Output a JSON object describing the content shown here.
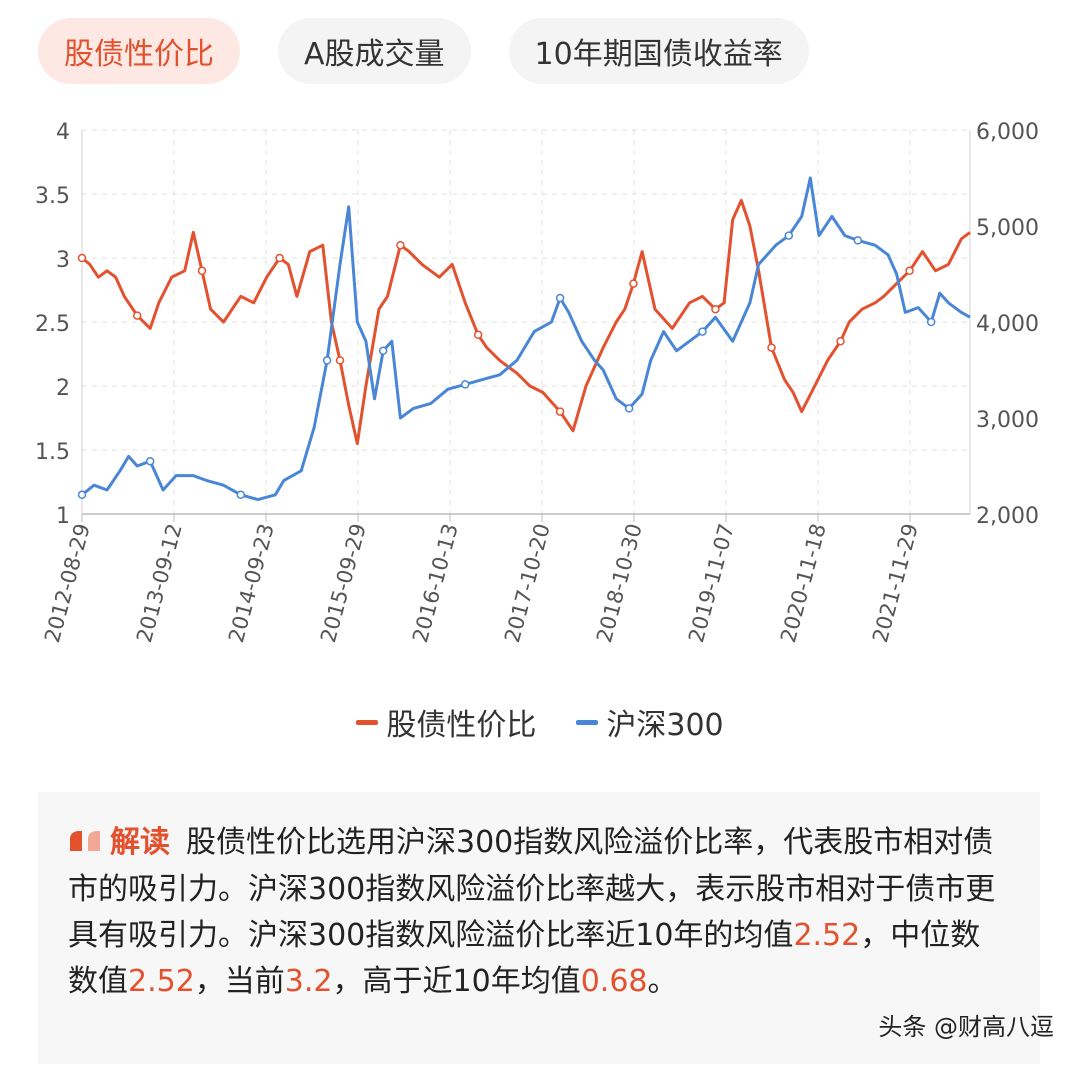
{
  "tabs": [
    {
      "label": "股债性价比",
      "active": true
    },
    {
      "label": "A股成交量",
      "active": false
    },
    {
      "label": "10年期国债收益率",
      "active": false
    }
  ],
  "colors": {
    "series1": "#e3522f",
    "series2": "#4a86d6",
    "grid": "#e0e0e0"
  },
  "chart_data": {
    "type": "line",
    "grid": true,
    "legend_position": "bottom",
    "x_labels": [
      "2012-08-29",
      "2013-09-12",
      "2014-09-23",
      "2015-09-29",
      "2016-10-13",
      "2017-10-20",
      "2018-10-30",
      "2019-11-07",
      "2020-11-18",
      "2021-11-29"
    ],
    "y_left": {
      "ticks": [
        "4",
        "3.5",
        "3",
        "2.5",
        "2",
        "1.5",
        "1"
      ],
      "range": [
        1,
        4
      ]
    },
    "y_right": {
      "ticks": [
        "6,000",
        "5,000",
        "4,000",
        "3,000",
        "2,000"
      ],
      "range": [
        2000,
        6000
      ]
    },
    "x_range": [
      2012.66,
      2022.95
    ],
    "series": [
      {
        "name": "股债性价比",
        "axis": "left",
        "color": "#e3522f",
        "points": [
          [
            2012.66,
            3.0
          ],
          [
            2012.75,
            2.95
          ],
          [
            2012.85,
            2.85
          ],
          [
            2012.95,
            2.9
          ],
          [
            2013.05,
            2.85
          ],
          [
            2013.15,
            2.7
          ],
          [
            2013.3,
            2.55
          ],
          [
            2013.45,
            2.45
          ],
          [
            2013.55,
            2.65
          ],
          [
            2013.7,
            2.85
          ],
          [
            2013.85,
            2.9
          ],
          [
            2013.95,
            3.2
          ],
          [
            2014.05,
            2.9
          ],
          [
            2014.15,
            2.6
          ],
          [
            2014.3,
            2.5
          ],
          [
            2014.5,
            2.7
          ],
          [
            2014.65,
            2.65
          ],
          [
            2014.8,
            2.85
          ],
          [
            2014.95,
            3.0
          ],
          [
            2015.05,
            2.95
          ],
          [
            2015.15,
            2.7
          ],
          [
            2015.3,
            3.05
          ],
          [
            2015.45,
            3.1
          ],
          [
            2015.55,
            2.5
          ],
          [
            2015.65,
            2.2
          ],
          [
            2015.75,
            1.85
          ],
          [
            2015.85,
            1.55
          ],
          [
            2015.95,
            2.0
          ],
          [
            2016.1,
            2.6
          ],
          [
            2016.2,
            2.7
          ],
          [
            2016.35,
            3.1
          ],
          [
            2016.45,
            3.05
          ],
          [
            2016.6,
            2.95
          ],
          [
            2016.8,
            2.85
          ],
          [
            2016.95,
            2.95
          ],
          [
            2017.1,
            2.65
          ],
          [
            2017.25,
            2.4
          ],
          [
            2017.35,
            2.3
          ],
          [
            2017.5,
            2.2
          ],
          [
            2017.7,
            2.1
          ],
          [
            2017.85,
            2.0
          ],
          [
            2018.0,
            1.95
          ],
          [
            2018.2,
            1.8
          ],
          [
            2018.35,
            1.65
          ],
          [
            2018.5,
            2.0
          ],
          [
            2018.7,
            2.3
          ],
          [
            2018.85,
            2.5
          ],
          [
            2018.95,
            2.6
          ],
          [
            2019.05,
            2.8
          ],
          [
            2019.15,
            3.05
          ],
          [
            2019.3,
            2.6
          ],
          [
            2019.5,
            2.45
          ],
          [
            2019.7,
            2.65
          ],
          [
            2019.85,
            2.7
          ],
          [
            2020.0,
            2.6
          ],
          [
            2020.1,
            2.65
          ],
          [
            2020.2,
            3.3
          ],
          [
            2020.3,
            3.45
          ],
          [
            2020.4,
            3.25
          ],
          [
            2020.5,
            2.9
          ],
          [
            2020.65,
            2.3
          ],
          [
            2020.8,
            2.05
          ],
          [
            2020.9,
            1.95
          ],
          [
            2021.0,
            1.8
          ],
          [
            2021.15,
            2.0
          ],
          [
            2021.3,
            2.2
          ],
          [
            2021.45,
            2.35
          ],
          [
            2021.55,
            2.5
          ],
          [
            2021.7,
            2.6
          ],
          [
            2021.85,
            2.65
          ],
          [
            2021.95,
            2.7
          ],
          [
            2022.1,
            2.8
          ],
          [
            2022.25,
            2.9
          ],
          [
            2022.4,
            3.05
          ],
          [
            2022.55,
            2.9
          ],
          [
            2022.7,
            2.95
          ],
          [
            2022.85,
            3.15
          ],
          [
            2022.95,
            3.2
          ]
        ]
      },
      {
        "name": "沪深300",
        "axis": "right",
        "color": "#4a86d6",
        "points": [
          [
            2012.66,
            2200
          ],
          [
            2012.8,
            2300
          ],
          [
            2012.95,
            2250
          ],
          [
            2013.1,
            2450
          ],
          [
            2013.2,
            2600
          ],
          [
            2013.3,
            2500
          ],
          [
            2013.45,
            2550
          ],
          [
            2013.6,
            2250
          ],
          [
            2013.75,
            2400
          ],
          [
            2013.95,
            2400
          ],
          [
            2014.1,
            2350
          ],
          [
            2014.3,
            2300
          ],
          [
            2014.5,
            2200
          ],
          [
            2014.7,
            2150
          ],
          [
            2014.9,
            2200
          ],
          [
            2015.0,
            2350
          ],
          [
            2015.2,
            2450
          ],
          [
            2015.35,
            2900
          ],
          [
            2015.5,
            3600
          ],
          [
            2015.65,
            4600
          ],
          [
            2015.75,
            5200
          ],
          [
            2015.85,
            4000
          ],
          [
            2015.95,
            3800
          ],
          [
            2016.05,
            3200
          ],
          [
            2016.15,
            3700
          ],
          [
            2016.25,
            3800
          ],
          [
            2016.35,
            3000
          ],
          [
            2016.5,
            3100
          ],
          [
            2016.7,
            3150
          ],
          [
            2016.9,
            3300
          ],
          [
            2017.1,
            3350
          ],
          [
            2017.3,
            3400
          ],
          [
            2017.5,
            3450
          ],
          [
            2017.7,
            3600
          ],
          [
            2017.9,
            3900
          ],
          [
            2018.1,
            4000
          ],
          [
            2018.2,
            4250
          ],
          [
            2018.3,
            4100
          ],
          [
            2018.45,
            3800
          ],
          [
            2018.6,
            3600
          ],
          [
            2018.7,
            3500
          ],
          [
            2018.85,
            3200
          ],
          [
            2019.0,
            3100
          ],
          [
            2019.15,
            3250
          ],
          [
            2019.25,
            3600
          ],
          [
            2019.4,
            3900
          ],
          [
            2019.55,
            3700
          ],
          [
            2019.7,
            3800
          ],
          [
            2019.85,
            3900
          ],
          [
            2020.0,
            4050
          ],
          [
            2020.2,
            3800
          ],
          [
            2020.4,
            4200
          ],
          [
            2020.5,
            4600
          ],
          [
            2020.7,
            4800
          ],
          [
            2020.85,
            4900
          ],
          [
            2021.0,
            5100
          ],
          [
            2021.1,
            5500
          ],
          [
            2021.2,
            4900
          ],
          [
            2021.35,
            5100
          ],
          [
            2021.5,
            4900
          ],
          [
            2021.65,
            4850
          ],
          [
            2021.85,
            4800
          ],
          [
            2022.0,
            4700
          ],
          [
            2022.1,
            4500
          ],
          [
            2022.2,
            4100
          ],
          [
            2022.35,
            4150
          ],
          [
            2022.5,
            4000
          ],
          [
            2022.6,
            4300
          ],
          [
            2022.7,
            4200
          ],
          [
            2022.85,
            4100
          ],
          [
            2022.95,
            4050
          ]
        ]
      }
    ]
  },
  "note": {
    "title": "解读",
    "t1": "股债性价比选用沪深300指数风险溢价比率，代表股市相对债市的吸引力。沪深300指数风险溢价比率越大，表示股市相对于债市更具有吸引力。沪深300指数风险溢价比率近10年的均值",
    "v1": "2.52",
    "t2": "，中位数数值",
    "v2": "2.52",
    "t3": "，当前",
    "v3": "3.2",
    "t4": "，高于近10年均值",
    "v4": "0.68",
    "t5": "。"
  },
  "watermark": "头条 @财高八逗"
}
